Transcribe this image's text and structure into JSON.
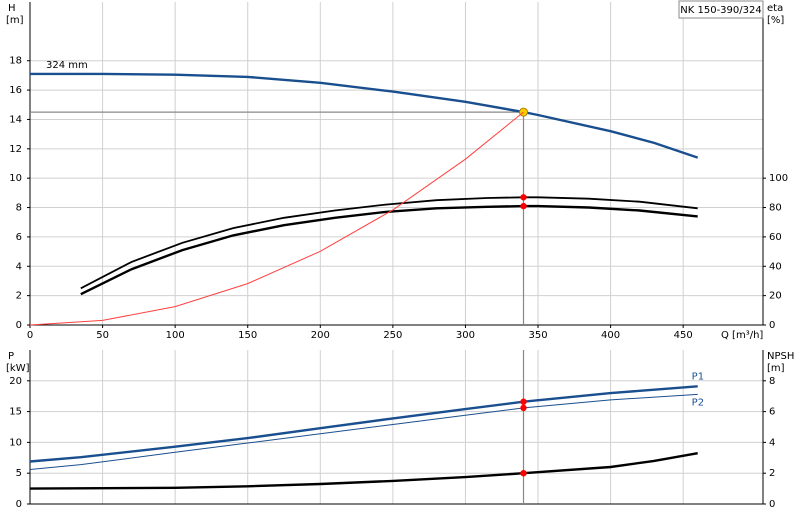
{
  "chart_data": [
    {
      "type": "line",
      "title": "NK 150-390/324",
      "ylabel": "H",
      "yunit": "[m]",
      "y2label": "eta",
      "y2unit": "[%]",
      "xlabel": "Q [m³/h]",
      "xlim": [
        0,
        505
      ],
      "xticks": [
        0,
        50,
        100,
        150,
        200,
        250,
        300,
        350,
        400,
        450
      ],
      "ylim": [
        0,
        22
      ],
      "yticks": [
        0,
        2,
        4,
        6,
        8,
        10,
        12,
        14,
        16,
        18
      ],
      "y2lim": [
        0,
        220
      ],
      "y2ticks": [
        0,
        20,
        40,
        60,
        80,
        100
      ],
      "grid": true,
      "duty_x": 340,
      "series": [
        {
          "name": "324 mm",
          "color": "#1a4f8f",
          "style": "thick",
          "label_at": "start",
          "marker_color": "#ffcc00",
          "x": [
            0,
            50,
            100,
            150,
            200,
            250,
            300,
            340,
            350,
            400,
            430,
            460
          ],
          "values": [
            17.1,
            17.1,
            17.05,
            16.9,
            16.5,
            15.9,
            15.2,
            14.5,
            14.3,
            13.2,
            12.4,
            11.4
          ]
        },
        {
          "color": "#000000",
          "style": "thick",
          "axis": "y2",
          "marker_color": "#ff0000",
          "x": [
            35,
            70,
            105,
            140,
            175,
            210,
            245,
            280,
            315,
            340,
            350,
            385,
            420,
            460
          ],
          "values": [
            21,
            38,
            51,
            61,
            68,
            73,
            77,
            79.5,
            80.5,
            81,
            81,
            80,
            78,
            74
          ]
        },
        {
          "color": "#000000",
          "style": "medium",
          "axis": "y2",
          "marker_color": "#ff0000",
          "x": [
            35,
            70,
            105,
            140,
            175,
            210,
            245,
            280,
            315,
            340,
            350,
            385,
            420,
            460
          ],
          "values": [
            25,
            43,
            56,
            66,
            73,
            78,
            82,
            85,
            86.5,
            87,
            87,
            86,
            84,
            79.5
          ]
        },
        {
          "color": "#ff4040",
          "style": "thin",
          "x": [
            0,
            50,
            100,
            150,
            200,
            250,
            300,
            340
          ],
          "values": [
            0,
            0.31,
            1.25,
            2.82,
            5.02,
            7.84,
            11.29,
            14.5
          ]
        }
      ]
    },
    {
      "type": "line",
      "ylabel": "P",
      "yunit": "[kW]",
      "y2label": "NPSH",
      "y2unit": "[m]",
      "xlim": [
        0,
        505
      ],
      "ylim": [
        0,
        25
      ],
      "yticks": [
        0,
        5,
        10,
        15,
        20
      ],
      "y2lim": [
        0,
        10
      ],
      "y2ticks": [
        0,
        2,
        4,
        6,
        8
      ],
      "grid": true,
      "duty_x": 340,
      "series": [
        {
          "name": "P1",
          "color": "#1a4f8f",
          "style": "thick",
          "label_at": "end",
          "marker_color": "#ff0000",
          "x": [
            0,
            35,
            100,
            150,
            200,
            250,
            300,
            340,
            400,
            460
          ],
          "values": [
            6.9,
            7.6,
            9.3,
            10.7,
            12.3,
            13.9,
            15.4,
            16.6,
            18.0,
            19.1
          ]
        },
        {
          "name": "P2",
          "color": "#1a4f8f",
          "style": "thin",
          "label_at": "end",
          "marker_color": "#ff0000",
          "x": [
            0,
            35,
            100,
            150,
            200,
            250,
            300,
            340,
            400,
            460
          ],
          "values": [
            5.6,
            6.4,
            8.4,
            9.9,
            11.4,
            12.9,
            14.4,
            15.6,
            16.9,
            17.8
          ]
        },
        {
          "color": "#000000",
          "style": "thick",
          "axis": "y2",
          "marker_color": "#ff0000",
          "x": [
            0,
            100,
            150,
            200,
            250,
            300,
            340,
            400,
            430,
            460
          ],
          "values": [
            1.0,
            1.05,
            1.15,
            1.3,
            1.5,
            1.75,
            2.0,
            2.4,
            2.8,
            3.3
          ]
        }
      ]
    }
  ]
}
